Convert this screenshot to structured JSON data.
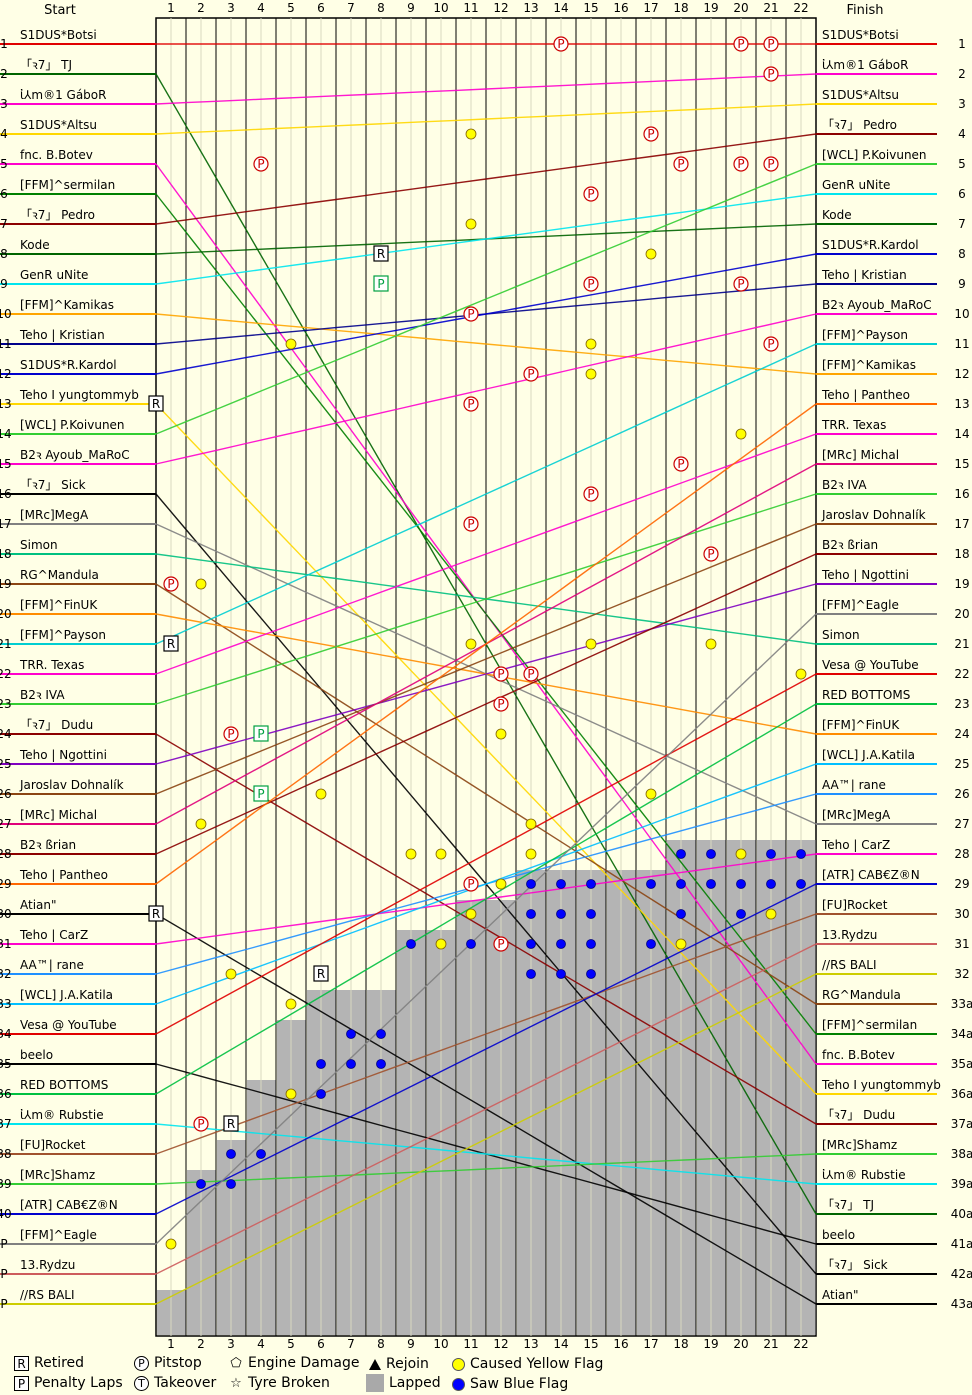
{
  "header": {
    "start_label": "Start",
    "finish_label": "Finish"
  },
  "chart_data": {
    "type": "lap-position-chart",
    "laps": [
      "1",
      "2",
      "3",
      "4",
      "5",
      "6",
      "7",
      "8",
      "9",
      "10",
      "11",
      "12",
      "13",
      "14",
      "15",
      "16",
      "17",
      "18",
      "19",
      "20",
      "21",
      "22"
    ],
    "position_labels_left": [
      "1",
      "2",
      "3",
      "4",
      "5",
      "6",
      "7",
      "8",
      "9",
      "10",
      "11",
      "12",
      "13",
      "14",
      "15",
      "16",
      "17",
      "18",
      "19",
      "20",
      "21",
      "22",
      "23",
      "24",
      "25",
      "26",
      "27",
      "28",
      "29",
      "30",
      "31",
      "32",
      "33",
      "34",
      "35",
      "36",
      "37",
      "38",
      "39",
      "40",
      "P",
      "P",
      "P"
    ],
    "position_labels_right": [
      "1",
      "2",
      "3",
      "4",
      "5",
      "6",
      "7",
      "8",
      "9",
      "10",
      "11",
      "12",
      "13",
      "14",
      "15",
      "16",
      "17",
      "18",
      "19",
      "20",
      "21",
      "22",
      "23",
      "24",
      "25",
      "26",
      "27",
      "28",
      "29",
      "30",
      "31",
      "32",
      "33a",
      "34a",
      "35a",
      "36a",
      "37a",
      "38a",
      "39a",
      "40a",
      "41a",
      "42a",
      "43a"
    ],
    "start_drivers": [
      {
        "name": "S1DUS*Botsi",
        "color": "#e00000"
      },
      {
        "name": "「ꝛ7」 TJ",
        "color": "#006400"
      },
      {
        "name": "ἰ⅄m®1 GáboR",
        "color": "#ff00cc"
      },
      {
        "name": "S1DUS*Altsu",
        "color": "#ffd700"
      },
      {
        "name": "fnc. B.Botev",
        "color": "#ff00cc"
      },
      {
        "name": "[FFM]^sermilan",
        "color": "#008000"
      },
      {
        "name": "「ꝛ7」 Pedro",
        "color": "#8b0000"
      },
      {
        "name": "Kode",
        "color": "#006400"
      },
      {
        "name": "GenR uNite",
        "color": "#00e5ee"
      },
      {
        "name": "[FFM]^Kamikas",
        "color": "#ffa500"
      },
      {
        "name": "Teho | Kristian",
        "color": "#00008b"
      },
      {
        "name": "S1DUS*R.Kardol",
        "color": "#0000cd"
      },
      {
        "name": "Teho I yungtommyb",
        "color": "#ffd700"
      },
      {
        "name": "[WCL] P.Koivunen",
        "color": "#32cd32"
      },
      {
        "name": "B2ꝛ Ayoub_MaRoC",
        "color": "#ff00cc"
      },
      {
        "name": "「ꝛ7」 Sick",
        "color": "#000000"
      },
      {
        "name": "[MRc]MegA",
        "color": "#808080"
      },
      {
        "name": "Simon",
        "color": "#00c080"
      },
      {
        "name": "RG^Mandula",
        "color": "#8b4513"
      },
      {
        "name": "[FFM]^FinUK",
        "color": "#ff8c00"
      },
      {
        "name": "[FFM]^Payson",
        "color": "#00ced1"
      },
      {
        "name": "TRR. Texas",
        "color": "#ff00cc"
      },
      {
        "name": "B2ꝛ IVA",
        "color": "#32cd32"
      },
      {
        "name": "「ꝛ7」 Dudu",
        "color": "#8b0000"
      },
      {
        "name": "Teho | Ngottini",
        "color": "#8000c0"
      },
      {
        "name": "Jaroslav Dohnalík",
        "color": "#8b4513"
      },
      {
        "name": "[MRc] Michal",
        "color": "#e0007a"
      },
      {
        "name": "B2ꝛ ßrian",
        "color": "#8b0000"
      },
      {
        "name": "Teho | Pantheo",
        "color": "#ff6600"
      },
      {
        "name": "Atian\"",
        "color": "#000000"
      },
      {
        "name": "Teho | CarZ",
        "color": "#ff00cc"
      },
      {
        "name": "AA™| rane",
        "color": "#1e90ff"
      },
      {
        "name": "[WCL] J.A.Katila",
        "color": "#00bfff"
      },
      {
        "name": "Vesa @ YouTube",
        "color": "#e00000"
      },
      {
        "name": "beelo",
        "color": "#000000"
      },
      {
        "name": "RED BOTTOMS",
        "color": "#00c040"
      },
      {
        "name": "ἰ⅄m® Rubstie",
        "color": "#00e5ee"
      },
      {
        "name": "[FU]Rocket",
        "color": "#a0522d"
      },
      {
        "name": "[MRc]Shamz",
        "color": "#32cd32"
      },
      {
        "name": "[ATR] CAB€Z®N",
        "color": "#0000cd"
      },
      {
        "name": "[FFM]^Eagle",
        "color": "#808080"
      },
      {
        "name": "13.Rydzu",
        "color": "#cd5c5c"
      },
      {
        "name": "//RS BALI",
        "color": "#cdcd00"
      }
    ],
    "finish_drivers": [
      {
        "name": "S1DUS*Botsi",
        "color": "#e00000"
      },
      {
        "name": "ἰ⅄m®1 GáboR",
        "color": "#ff00cc"
      },
      {
        "name": "S1DUS*Altsu",
        "color": "#ffd700"
      },
      {
        "name": "「ꝛ7」 Pedro",
        "color": "#8b0000"
      },
      {
        "name": "[WCL] P.Koivunen",
        "color": "#32cd32"
      },
      {
        "name": "GenR uNite",
        "color": "#00e5ee"
      },
      {
        "name": "Kode",
        "color": "#006400"
      },
      {
        "name": "S1DUS*R.Kardol",
        "color": "#0000cd"
      },
      {
        "name": "Teho | Kristian",
        "color": "#00008b"
      },
      {
        "name": "B2ꝛ Ayoub_MaRoC",
        "color": "#ff00cc"
      },
      {
        "name": "[FFM]^Payson",
        "color": "#00ced1"
      },
      {
        "name": "[FFM]^Kamikas",
        "color": "#ffa500"
      },
      {
        "name": "Teho | Pantheo",
        "color": "#ff6600"
      },
      {
        "name": "TRR. Texas",
        "color": "#ff00cc"
      },
      {
        "name": "[MRc] Michal",
        "color": "#e0007a"
      },
      {
        "name": "B2ꝛ IVA",
        "color": "#32cd32"
      },
      {
        "name": "Jaroslav Dohnalík",
        "color": "#8b4513"
      },
      {
        "name": "B2ꝛ ßrian",
        "color": "#8b0000"
      },
      {
        "name": "Teho | Ngottini",
        "color": "#8000c0"
      },
      {
        "name": "[FFM]^Eagle",
        "color": "#808080"
      },
      {
        "name": "Simon",
        "color": "#00c080"
      },
      {
        "name": "Vesa @ YouTube",
        "color": "#e00000"
      },
      {
        "name": "RED BOTTOMS",
        "color": "#00c040"
      },
      {
        "name": "[FFM]^FinUK",
        "color": "#ff8c00"
      },
      {
        "name": "[WCL] J.A.Katila",
        "color": "#00bfff"
      },
      {
        "name": "AA™| rane",
        "color": "#1e90ff"
      },
      {
        "name": "[MRc]MegA",
        "color": "#808080"
      },
      {
        "name": "Teho | CarZ",
        "color": "#ff00cc"
      },
      {
        "name": "[ATR] CAB€Z®N",
        "color": "#0000cd"
      },
      {
        "name": "[FU]Rocket",
        "color": "#a0522d"
      },
      {
        "name": "13.Rydzu",
        "color": "#cd5c5c"
      },
      {
        "name": "//RS BALI",
        "color": "#cdcd00"
      },
      {
        "name": "RG^Mandula",
        "color": "#8b4513"
      },
      {
        "name": "[FFM]^sermilan",
        "color": "#008000"
      },
      {
        "name": "fnc. B.Botev",
        "color": "#ff00cc"
      },
      {
        "name": "Teho I yungtommyb",
        "color": "#ffd700"
      },
      {
        "name": "「ꝛ7」 Dudu",
        "color": "#8b0000"
      },
      {
        "name": "[MRc]Shamz",
        "color": "#32cd32"
      },
      {
        "name": "ἰ⅄m® Rubstie",
        "color": "#00e5ee"
      },
      {
        "name": "「ꝛ7」 TJ",
        "color": "#006400"
      },
      {
        "name": "beelo",
        "color": "#000000"
      },
      {
        "name": "「ꝛ7」 Sick",
        "color": "#000000"
      },
      {
        "name": "Atian\"",
        "color": "#000000"
      }
    ],
    "lapped_region_start_position_by_lap": [
      43,
      39,
      38,
      36,
      34,
      33,
      33,
      33,
      31,
      31,
      30,
      30,
      29,
      29,
      29,
      29,
      29,
      28,
      28,
      28,
      28,
      28
    ],
    "events": [
      {
        "type": "pitstop",
        "lap": 14,
        "position": 1
      },
      {
        "type": "pitstop",
        "lap": 20,
        "position": 1
      },
      {
        "type": "pitstop",
        "lap": 21,
        "position": 1
      },
      {
        "type": "pitstop",
        "lap": 21,
        "position": 2
      },
      {
        "type": "pitstop",
        "lap": 17,
        "position": 4
      },
      {
        "type": "pitstop",
        "lap": 18,
        "position": 5
      },
      {
        "type": "pitstop",
        "lap": 20,
        "position": 5
      },
      {
        "type": "pitstop",
        "lap": 21,
        "position": 5
      },
      {
        "type": "pitstop",
        "lap": 4,
        "position": 5
      },
      {
        "type": "pitstop",
        "lap": 15,
        "position": 6
      },
      {
        "type": "pitstop",
        "lap": 15,
        "position": 9
      },
      {
        "type": "pitstop",
        "lap": 20,
        "position": 9
      },
      {
        "type": "pitstop",
        "lap": 11,
        "position": 10
      },
      {
        "type": "pitstop",
        "lap": 21,
        "position": 11
      },
      {
        "type": "pitstop",
        "lap": 13,
        "position": 12
      },
      {
        "type": "pitstop",
        "lap": 11,
        "position": 13
      },
      {
        "type": "pitstop",
        "lap": 18,
        "position": 15
      },
      {
        "type": "pitstop",
        "lap": 15,
        "position": 16
      },
      {
        "type": "pitstop",
        "lap": 11,
        "position": 17
      },
      {
        "type": "pitstop",
        "lap": 19,
        "position": 18
      },
      {
        "type": "pitstop",
        "lap": 12,
        "position": 22
      },
      {
        "type": "pitstop",
        "lap": 13,
        "position": 22
      },
      {
        "type": "pitstop",
        "lap": 12,
        "position": 23
      },
      {
        "type": "pitstop",
        "lap": 3,
        "position": 24
      },
      {
        "type": "pitstop",
        "lap": 11,
        "position": 29
      },
      {
        "type": "pitstop",
        "lap": 12,
        "position": 31
      },
      {
        "type": "pitstop",
        "lap": 2,
        "position": 37
      },
      {
        "type": "pitstop",
        "lap": 1,
        "position": 19
      },
      {
        "type": "retired",
        "lap": 8,
        "position": 8
      },
      {
        "type": "retired",
        "lap": 0,
        "position": 13
      },
      {
        "type": "retired",
        "lap": 1,
        "position": 21
      },
      {
        "type": "retired",
        "lap": 0,
        "position": 30
      },
      {
        "type": "retired",
        "lap": 6,
        "position": 32
      },
      {
        "type": "retired",
        "lap": 3,
        "position": 37
      },
      {
        "type": "penalty",
        "lap": 8,
        "position": 9
      },
      {
        "type": "penalty",
        "lap": 4,
        "position": 24
      },
      {
        "type": "penalty",
        "lap": 4,
        "position": 26
      }
    ],
    "blue_flags": [
      {
        "lap": 18,
        "position": 28
      },
      {
        "lap": 19,
        "position": 28
      },
      {
        "lap": 21,
        "position": 28
      },
      {
        "lap": 22,
        "position": 28
      },
      {
        "lap": 13,
        "position": 29
      },
      {
        "lap": 14,
        "position": 29
      },
      {
        "lap": 15,
        "position": 29
      },
      {
        "lap": 17,
        "position": 29
      },
      {
        "lap": 18,
        "position": 29
      },
      {
        "lap": 19,
        "position": 29
      },
      {
        "lap": 20,
        "position": 29
      },
      {
        "lap": 21,
        "position": 29
      },
      {
        "lap": 22,
        "position": 29
      },
      {
        "lap": 13,
        "position": 30
      },
      {
        "lap": 14,
        "position": 30
      },
      {
        "lap": 15,
        "position": 30
      },
      {
        "lap": 18,
        "position": 30
      },
      {
        "lap": 20,
        "position": 30
      },
      {
        "lap": 21,
        "position": 30
      },
      {
        "lap": 9,
        "position": 31
      },
      {
        "lap": 10,
        "position": 31
      },
      {
        "lap": 11,
        "position": 31
      },
      {
        "lap": 12,
        "position": 31
      },
      {
        "lap": 13,
        "position": 31
      },
      {
        "lap": 14,
        "position": 31
      },
      {
        "lap": 15,
        "position": 31
      },
      {
        "lap": 17,
        "position": 31
      },
      {
        "lap": 18,
        "position": 31
      },
      {
        "lap": 13,
        "position": 32
      },
      {
        "lap": 14,
        "position": 32
      },
      {
        "lap": 15,
        "position": 32
      },
      {
        "lap": 7,
        "position": 34
      },
      {
        "lap": 8,
        "position": 34
      },
      {
        "lap": 6,
        "position": 35
      },
      {
        "lap": 7,
        "position": 35
      },
      {
        "lap": 8,
        "position": 35
      },
      {
        "lap": 5,
        "position": 36
      },
      {
        "lap": 6,
        "position": 36
      },
      {
        "lap": 3,
        "position": 38
      },
      {
        "lap": 4,
        "position": 38
      },
      {
        "lap": 2,
        "position": 39
      },
      {
        "lap": 3,
        "position": 39
      }
    ],
    "yellow_flags": [
      {
        "lap": 11,
        "position": 4
      },
      {
        "lap": 11,
        "position": 7
      },
      {
        "lap": 17,
        "position": 8
      },
      {
        "lap": 5,
        "position": 11
      },
      {
        "lap": 15,
        "position": 11
      },
      {
        "lap": 15,
        "position": 12
      },
      {
        "lap": 20,
        "position": 14
      },
      {
        "lap": 2,
        "position": 19
      },
      {
        "lap": 11,
        "position": 21
      },
      {
        "lap": 15,
        "position": 21
      },
      {
        "lap": 19,
        "position": 21
      },
      {
        "lap": 22,
        "position": 22
      },
      {
        "lap": 12,
        "position": 24
      },
      {
        "lap": 6,
        "position": 26
      },
      {
        "lap": 17,
        "position": 26
      },
      {
        "lap": 2,
        "position": 27
      },
      {
        "lap": 13,
        "position": 27
      },
      {
        "lap": 9,
        "position": 28
      },
      {
        "lap": 10,
        "position": 28
      },
      {
        "lap": 13,
        "position": 28
      },
      {
        "lap": 20,
        "position": 28
      },
      {
        "lap": 12,
        "position": 29
      },
      {
        "lap": 11,
        "position": 30
      },
      {
        "lap": 21,
        "position": 30
      },
      {
        "lap": 10,
        "position": 31
      },
      {
        "lap": 18,
        "position": 31
      },
      {
        "lap": 3,
        "position": 32
      },
      {
        "lap": 5,
        "position": 33
      },
      {
        "lap": 5,
        "position": 36
      },
      {
        "lap": 1,
        "position": 41
      }
    ]
  },
  "legend": {
    "retired": {
      "symbol": "R",
      "label": "Retired"
    },
    "penalty": {
      "symbol": "P",
      "label": "Penalty Laps"
    },
    "pitstop": {
      "symbol": "P",
      "label": "Pitstop"
    },
    "takeover": {
      "symbol": "T",
      "label": "Takeover"
    },
    "engine": {
      "label": "Engine Damage"
    },
    "tyre": {
      "label": "Tyre Broken"
    },
    "rejoin": {
      "label": "Rejoin"
    },
    "lapped": {
      "label": "Lapped"
    },
    "yellow": {
      "label": "Caused Yellow Flag",
      "color": "#ffff00"
    },
    "blue": {
      "label": "Saw Blue Flag",
      "color": "#0000ff"
    }
  }
}
